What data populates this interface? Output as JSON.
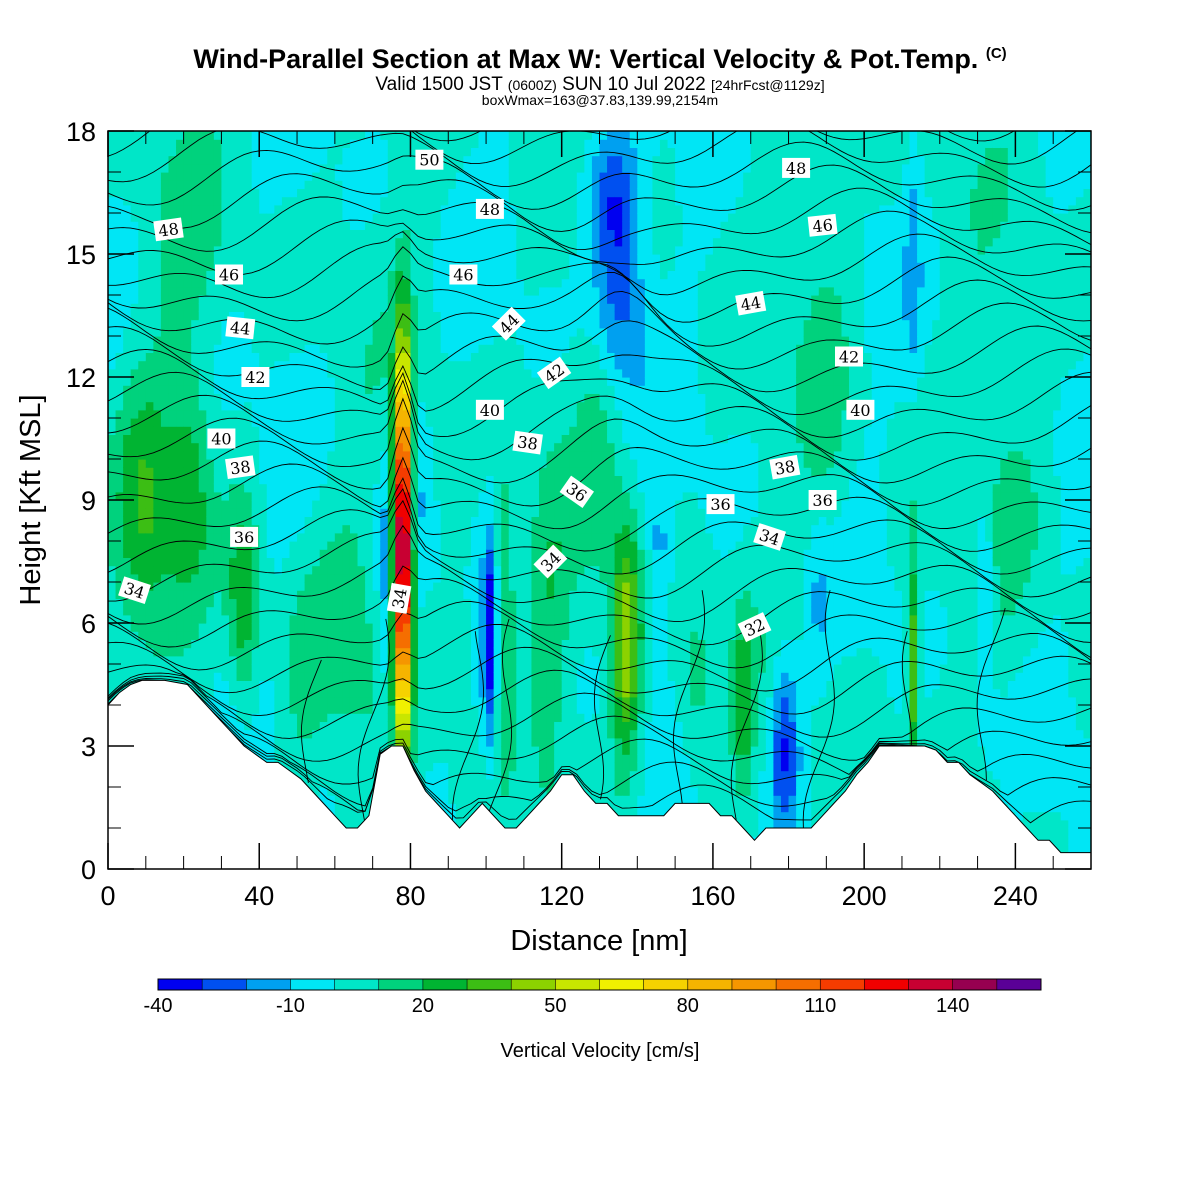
{
  "title": {
    "main": "Wind-Parallel Section at Max W: Vertical Velocity & Pot.Temp.",
    "copyright": "(C)",
    "valid_prefix": "Valid 1500 JST",
    "valid_utc": "(0600Z)",
    "valid_date": "SUN 10 Jul 2022",
    "forecast": "[24hrFcst@1129z]",
    "boxmax": "boxWmax=163@37.83,139.99,2154m"
  },
  "colors": {
    "terrain": "#ffffff",
    "contour": "#000000",
    "background_fill": "#00e6f5"
  },
  "chart_data": {
    "type": "heatmap",
    "xlabel": "Distance [nm]",
    "ylabel": "Height [Kft MSL]",
    "xlim": [
      0,
      260
    ],
    "ylim": [
      0,
      18
    ],
    "x_ticks": [
      0,
      40,
      80,
      120,
      160,
      200,
      240
    ],
    "y_ticks": [
      0,
      3,
      6,
      9,
      12,
      15,
      18
    ],
    "colorbar": {
      "label": "Vertical Velocity [cm/s]",
      "tick_labels": [
        "-40",
        "-10",
        "20",
        "50",
        "80",
        "110",
        "140"
      ],
      "tick_values": [
        -40,
        -10,
        20,
        50,
        80,
        110,
        140
      ],
      "bins": [
        -40,
        -30,
        -20,
        -10,
        0,
        10,
        20,
        30,
        40,
        50,
        60,
        70,
        80,
        90,
        100,
        110,
        120,
        130,
        140,
        150,
        160
      ],
      "colors": [
        "#0000f0",
        "#0050f0",
        "#00a0f0",
        "#00e6f5",
        "#00e6c8",
        "#00d27d",
        "#00b432",
        "#3cbe14",
        "#8cd200",
        "#c8e600",
        "#f0f000",
        "#f5d200",
        "#f5b400",
        "#f59600",
        "#f56e00",
        "#f53c00",
        "#f00000",
        "#c80032",
        "#960050",
        "#5a0096"
      ]
    },
    "terrain": {
      "x": [
        0,
        3,
        6,
        9,
        15,
        21,
        24,
        27,
        30,
        33,
        36,
        39,
        42,
        45,
        48,
        51,
        54,
        57,
        60,
        63,
        66,
        69,
        72,
        75,
        78,
        81,
        84,
        87,
        90,
        93,
        96,
        99,
        102,
        105,
        108,
        111,
        114,
        117,
        120,
        123,
        126,
        129,
        132,
        135,
        138,
        141,
        144,
        147,
        150,
        153,
        156,
        159,
        162,
        165,
        168,
        171,
        174,
        177,
        180,
        183,
        186,
        189,
        192,
        195,
        198,
        201,
        204,
        207,
        210,
        213,
        216,
        219,
        222,
        225,
        228,
        231,
        234,
        237,
        240,
        243,
        246,
        249,
        252,
        255,
        260
      ],
      "height": [
        4.0,
        4.3,
        4.5,
        4.6,
        4.6,
        4.5,
        4.2,
        3.9,
        3.6,
        3.3,
        3.0,
        2.8,
        2.6,
        2.6,
        2.4,
        2.2,
        1.9,
        1.6,
        1.3,
        1.0,
        1.0,
        1.3,
        2.8,
        3.0,
        3.0,
        2.4,
        1.9,
        1.6,
        1.3,
        1.0,
        1.3,
        1.6,
        1.3,
        1.0,
        1.0,
        1.3,
        1.6,
        1.9,
        2.3,
        2.3,
        1.9,
        1.6,
        1.6,
        1.3,
        1.3,
        1.3,
        1.3,
        1.3,
        1.6,
        1.6,
        1.6,
        1.6,
        1.3,
        1.3,
        1.0,
        0.7,
        1.0,
        1.0,
        1.0,
        1.0,
        1.0,
        1.3,
        1.6,
        1.9,
        2.3,
        2.6,
        3.0,
        3.0,
        3.0,
        3.0,
        3.0,
        2.9,
        2.6,
        2.6,
        2.3,
        2.1,
        1.9,
        1.6,
        1.3,
        1.0,
        0.7,
        0.7,
        0.4,
        0.4,
        0.4
      ]
    },
    "w_features": [
      {
        "x": 10,
        "z": 8.5,
        "w": 25,
        "dx": 9,
        "dz": 3.5
      },
      {
        "x": 22,
        "z": 9.5,
        "w": 18,
        "dx": 5,
        "dz": 3.0
      },
      {
        "x": 36,
        "z": 6.5,
        "w": 28,
        "dx": 4,
        "dz": 2.5
      },
      {
        "x": 52,
        "z": 4.5,
        "w": 12,
        "dx": 6,
        "dz": 2.5
      },
      {
        "x": 63,
        "z": 6.0,
        "w": 10,
        "dx": 8,
        "dz": 3.0
      },
      {
        "x": 78,
        "z": 8.0,
        "w": 163,
        "dx": 2.3,
        "dz": 4.2
      },
      {
        "x": 73,
        "z": 7.0,
        "w": -16,
        "dx": 2.0,
        "dz": 3.5
      },
      {
        "x": 82,
        "z": 9.0,
        "w": -12,
        "dx": 2.5,
        "dz": 2.5
      },
      {
        "x": 93,
        "z": 5.0,
        "w": 12,
        "dx": 3,
        "dz": 3.0
      },
      {
        "x": 101,
        "z": 5.5,
        "w": -38,
        "dx": 1.8,
        "dz": 2.5
      },
      {
        "x": 105,
        "z": 6.5,
        "w": 24,
        "dx": 2.5,
        "dz": 3.0
      },
      {
        "x": 117,
        "z": 6.0,
        "w": 14,
        "dx": 5,
        "dz": 4.0
      },
      {
        "x": 130,
        "z": 10.5,
        "w": 12,
        "dx": 6,
        "dz": 3.0
      },
      {
        "x": 137,
        "z": 5.5,
        "w": 48,
        "dx": 4,
        "dz": 2.8
      },
      {
        "x": 135,
        "z": 14.5,
        "w": -32,
        "dx": 7,
        "dz": 2.8
      },
      {
        "x": 133,
        "z": 16.5,
        "w": -18,
        "dx": 8,
        "dz": 1.5
      },
      {
        "x": 146,
        "z": 7.5,
        "w": -16,
        "dx": 3,
        "dz": 2.0
      },
      {
        "x": 155,
        "z": 4.5,
        "w": 14,
        "dx": 5,
        "dz": 2.0
      },
      {
        "x": 168,
        "z": 4.0,
        "w": 22,
        "dx": 2.5,
        "dz": 2.2
      },
      {
        "x": 179,
        "z": 3.0,
        "w": -34,
        "dx": 4,
        "dz": 2.2
      },
      {
        "x": 188,
        "z": 6.5,
        "w": -12,
        "dx": 3,
        "dz": 2.0
      },
      {
        "x": 190,
        "z": 12.5,
        "w": 10,
        "dx": 7,
        "dz": 5.0
      },
      {
        "x": 213,
        "z": 5.0,
        "w": 40,
        "dx": 1.8,
        "dz": 2.5
      },
      {
        "x": 213,
        "z": 15.0,
        "w": -14,
        "dx": 2.0,
        "dz": 3.0
      },
      {
        "x": 232,
        "z": 6.5,
        "w": -20,
        "dx": 2.5,
        "dz": 3.0
      },
      {
        "x": 240,
        "z": 9.0,
        "w": 8,
        "dx": 10,
        "dz": 4.0
      },
      {
        "x": 20,
        "z": 15.5,
        "w": 8,
        "dx": 10,
        "dz": 2.5
      }
    ],
    "contour_labels": [
      {
        "text": "50",
        "x": 85,
        "z": 17.3,
        "angle": 0
      },
      {
        "text": "48",
        "x": 16,
        "z": 15.6,
        "angle": -8
      },
      {
        "text": "48",
        "x": 101,
        "z": 16.1,
        "angle": 0
      },
      {
        "text": "48",
        "x": 182,
        "z": 17.1,
        "angle": 0
      },
      {
        "text": "46",
        "x": 32,
        "z": 14.5,
        "angle": 0
      },
      {
        "text": "46",
        "x": 94,
        "z": 14.5,
        "angle": 0
      },
      {
        "text": "46",
        "x": 189,
        "z": 15.7,
        "angle": -6
      },
      {
        "text": "44",
        "x": 35,
        "z": 13.2,
        "angle": 6
      },
      {
        "text": "44",
        "x": 106,
        "z": 13.3,
        "angle": -45
      },
      {
        "text": "44",
        "x": 170,
        "z": 13.8,
        "angle": -10
      },
      {
        "text": "42",
        "x": 39,
        "z": 12.0,
        "angle": 0
      },
      {
        "text": "42",
        "x": 118,
        "z": 12.1,
        "angle": -35
      },
      {
        "text": "42",
        "x": 196,
        "z": 12.5,
        "angle": 0
      },
      {
        "text": "40",
        "x": 30,
        "z": 10.5,
        "angle": 0
      },
      {
        "text": "40",
        "x": 101,
        "z": 11.2,
        "angle": 0
      },
      {
        "text": "40",
        "x": 199,
        "z": 11.2,
        "angle": 0
      },
      {
        "text": "38",
        "x": 35,
        "z": 9.8,
        "angle": -8
      },
      {
        "text": "38",
        "x": 111,
        "z": 10.4,
        "angle": 8
      },
      {
        "text": "38",
        "x": 179,
        "z": 9.8,
        "angle": -10
      },
      {
        "text": "36",
        "x": 36,
        "z": 8.1,
        "angle": 0
      },
      {
        "text": "36",
        "x": 124,
        "z": 9.2,
        "angle": 35
      },
      {
        "text": "36",
        "x": 162,
        "z": 8.9,
        "angle": 0
      },
      {
        "text": "36",
        "x": 189,
        "z": 9.0,
        "angle": 0
      },
      {
        "text": "34",
        "x": 7,
        "z": 6.8,
        "angle": 18
      },
      {
        "text": "34",
        "x": 77,
        "z": 6.6,
        "angle": -80
      },
      {
        "text": "34",
        "x": 117,
        "z": 7.5,
        "angle": -45
      },
      {
        "text": "34",
        "x": 175,
        "z": 8.1,
        "angle": 18
      },
      {
        "text": "32",
        "x": 171,
        "z": 5.9,
        "angle": -25
      }
    ]
  }
}
